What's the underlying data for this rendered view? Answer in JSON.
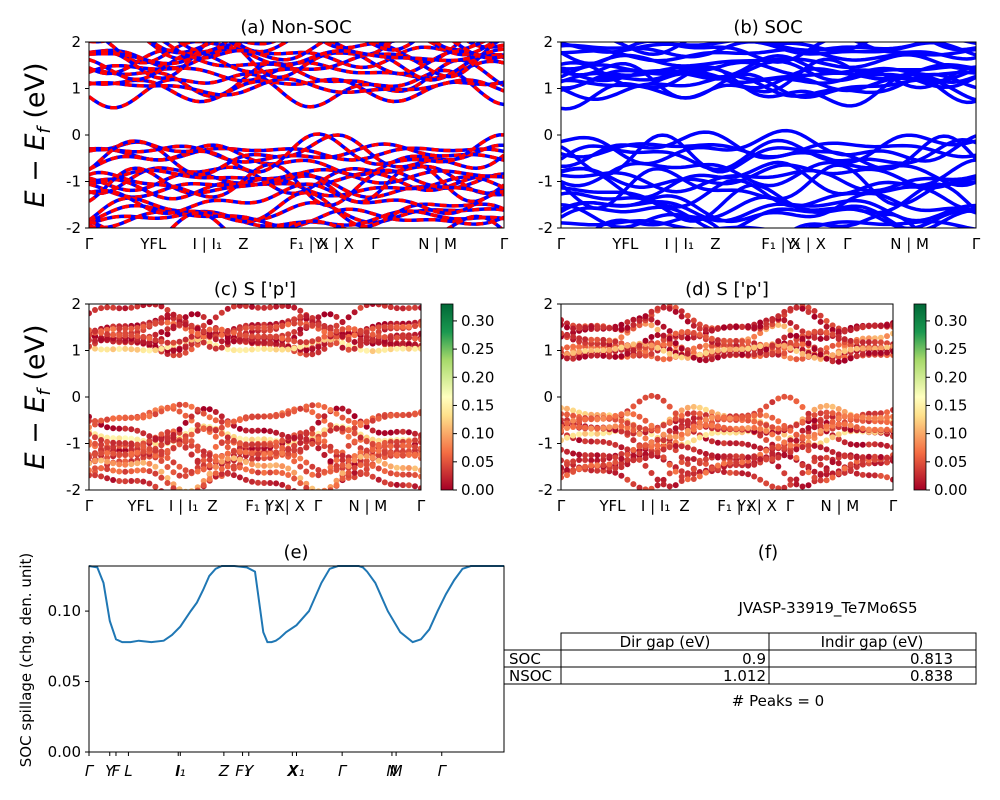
{
  "ylabel_energy": "E − E",
  "ylabel_energy_sub": "f",
  "ylabel_energy_unit": " (eV)",
  "ylabel_spillage": "SOC spillage (chg. den. unit)",
  "panel_titles": {
    "a": "(a) Non-SOC",
    "b": "(b) SOC",
    "c": "(c)  S ['p']",
    "d": "(d) S ['p']",
    "e": "(e)",
    "f": "(f)"
  },
  "kpoint_labels": [
    "Γ",
    "YFL",
    "I | I₁",
    "Z",
    "F₁ | X",
    "Y₁ | X",
    "Γ",
    "N | M",
    "Γ"
  ],
  "info_panel": {
    "material_id": "JVASP-33919_Te7Mo6S5",
    "peaks_text": "# Peaks = 0",
    "table": {
      "columns": [
        "",
        "Dir gap (eV)",
        "Indir gap (eV)"
      ],
      "rows": [
        {
          "label": "SOC",
          "dir": "0.9",
          "indir": "0.813"
        },
        {
          "label": "NSOC",
          "dir": "1.012",
          "indir": "0.838"
        }
      ]
    }
  },
  "colors": {
    "nonsoc_up": "#ff0000",
    "nonsoc_dn": "#0000ff",
    "soc": "#0000ff",
    "spillage": "#1f77b4"
  },
  "chart_data": [
    {
      "panel": "a",
      "type": "line",
      "title": "(a) Non-SOC",
      "ylim": [
        -2,
        2
      ],
      "yticks": [
        -2,
        -1,
        0,
        1,
        2
      ],
      "series": [
        {
          "name": "spin-up",
          "color": "#ff0000"
        },
        {
          "name": "spin-down",
          "color": "#0000ff"
        }
      ],
      "kpath": [
        "Γ",
        "Y",
        "F",
        "L",
        "I | I₁",
        "Z",
        "F₁ | X",
        "Y₁ | X",
        "Γ",
        "N | M",
        "Γ"
      ]
    },
    {
      "panel": "b",
      "type": "line",
      "title": "(b) SOC",
      "ylim": [
        -2,
        2
      ],
      "yticks": [
        -2,
        -1,
        0,
        1,
        2
      ],
      "series": [
        {
          "name": "bands",
          "color": "#0000ff"
        }
      ]
    },
    {
      "panel": "c",
      "type": "scatter",
      "title": "(c)  S ['p']",
      "ylim": [
        -2,
        2
      ],
      "colorbar": {
        "colormap": "RdYlGn",
        "range": [
          0,
          0.33
        ],
        "ticks": [
          0.0,
          0.05,
          0.1,
          0.15,
          0.2,
          0.25,
          0.3
        ]
      }
    },
    {
      "panel": "d",
      "type": "scatter",
      "title": "(d) S ['p']",
      "ylim": [
        -2,
        2
      ],
      "colorbar": {
        "colormap": "RdYlGn",
        "range": [
          0,
          0.33
        ],
        "ticks": [
          0.0,
          0.05,
          0.1,
          0.15,
          0.2,
          0.25,
          0.3
        ]
      }
    },
    {
      "panel": "e",
      "type": "line",
      "title": "(e)",
      "ylabel": "SOC spillage (chg. den. unit)",
      "ylim": [
        0,
        0.132
      ],
      "yticks": [
        0.0,
        0.05,
        0.1
      ],
      "xtick_labels": [
        "Γ",
        "Y",
        "F",
        "L",
        "I",
        "I₁",
        "Z",
        "F₁",
        "Y",
        "X",
        "X₁",
        "Γ",
        "N",
        "M",
        "Γ"
      ],
      "x": [
        0,
        0.02,
        0.035,
        0.05,
        0.065,
        0.08,
        0.1,
        0.12,
        0.15,
        0.18,
        0.2,
        0.22,
        0.245,
        0.26,
        0.275,
        0.29,
        0.305,
        0.32,
        0.35,
        0.38,
        0.4,
        0.42,
        0.43,
        0.44,
        0.45,
        0.46,
        0.475,
        0.5,
        0.53,
        0.56,
        0.58,
        0.6,
        0.62,
        0.64,
        0.65,
        0.66,
        0.67,
        0.69,
        0.72,
        0.75,
        0.78,
        0.8,
        0.82,
        0.84,
        0.86,
        0.88,
        0.9,
        0.92,
        0.94,
        0.96,
        1.0
      ],
      "values": [
        0.132,
        0.131,
        0.12,
        0.093,
        0.08,
        0.078,
        0.078,
        0.079,
        0.078,
        0.079,
        0.083,
        0.089,
        0.1,
        0.106,
        0.115,
        0.125,
        0.13,
        0.132,
        0.132,
        0.131,
        0.128,
        0.085,
        0.078,
        0.078,
        0.079,
        0.081,
        0.085,
        0.09,
        0.1,
        0.12,
        0.13,
        0.132,
        0.132,
        0.132,
        0.132,
        0.131,
        0.128,
        0.12,
        0.1,
        0.085,
        0.078,
        0.08,
        0.087,
        0.1,
        0.112,
        0.122,
        0.13,
        0.132,
        0.132,
        0.132,
        0.132
      ]
    }
  ]
}
